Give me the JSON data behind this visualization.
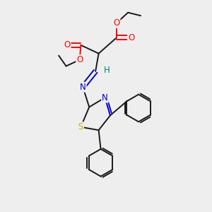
{
  "background_color": "#eeeeee",
  "bond_color": "#1a1a1a",
  "atom_colors": {
    "O": "#ff0000",
    "N": "#0000cc",
    "S": "#ccaa00",
    "H": "#008080",
    "C": "#1a1a1a"
  },
  "font_size_atom": 8.5,
  "fig_width": 3.0,
  "fig_height": 3.0,
  "dpi": 100
}
